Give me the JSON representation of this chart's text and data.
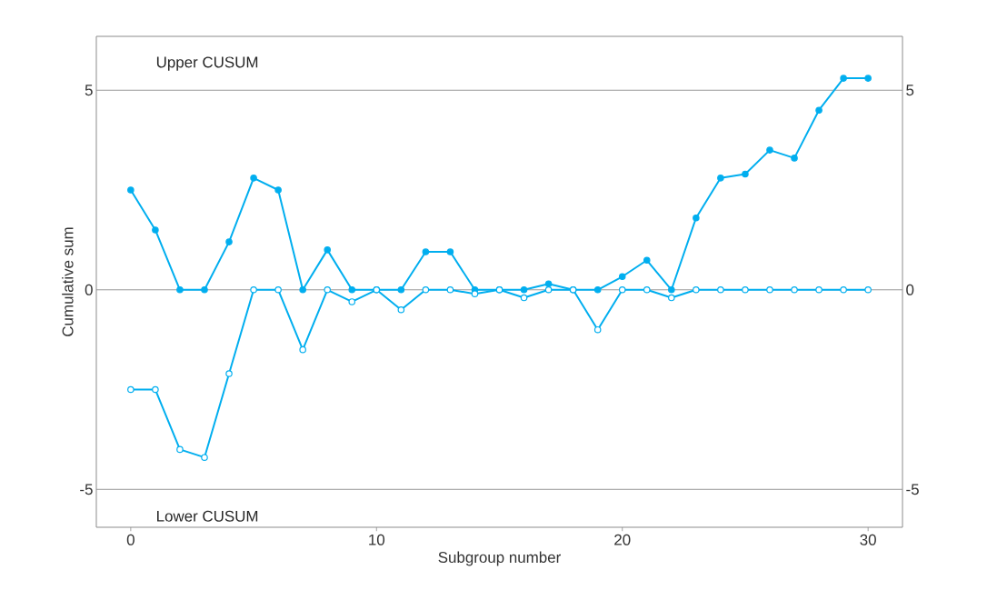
{
  "chart_data": {
    "type": "line",
    "xlabel": "Subgroup number",
    "ylabel": "Cumulative sum",
    "annotations": [
      "Upper CUSUM",
      "Lower CUSUM"
    ],
    "x": [
      0,
      1,
      2,
      3,
      4,
      5,
      6,
      7,
      8,
      9,
      10,
      11,
      12,
      13,
      14,
      15,
      16,
      17,
      18,
      19,
      20,
      21,
      22,
      23,
      24,
      25,
      26,
      27,
      28,
      29,
      30
    ],
    "series": [
      {
        "color": "#00aeef",
        "values": [
          2.5,
          1.5,
          0,
          0,
          1.2,
          2.8,
          2.5,
          0,
          1.0,
          0,
          0,
          0,
          0.95,
          0.95,
          0,
          0,
          0,
          0.15,
          0,
          0,
          0.33,
          0.74,
          0,
          1.8,
          2.8,
          2.9,
          3.5,
          3.3,
          4.5,
          5.3,
          5.3
        ]
      },
      {
        "color": "#00aeef",
        "values": [
          -2.5,
          -2.5,
          -4.0,
          -4.2,
          -2.1,
          0,
          0,
          -1.5,
          0,
          -0.3,
          0,
          -0.5,
          0,
          0,
          -0.1,
          0,
          -0.2,
          0,
          0,
          -1.0,
          0,
          0,
          -0.2,
          0,
          0,
          0,
          0,
          0,
          0,
          0,
          0
        ]
      }
    ],
    "xlim": [
      -1.4,
      31.4
    ],
    "ylim": [
      -5.95,
      6.35
    ],
    "xticks": [
      0,
      10,
      20,
      30
    ],
    "yticks": [
      -5,
      0,
      5
    ],
    "y2lim": [
      -5.95,
      6.35
    ],
    "y2ticks": [
      -5,
      0,
      5
    ],
    "grid": "y",
    "marker": "circle",
    "line_style": "solid"
  }
}
